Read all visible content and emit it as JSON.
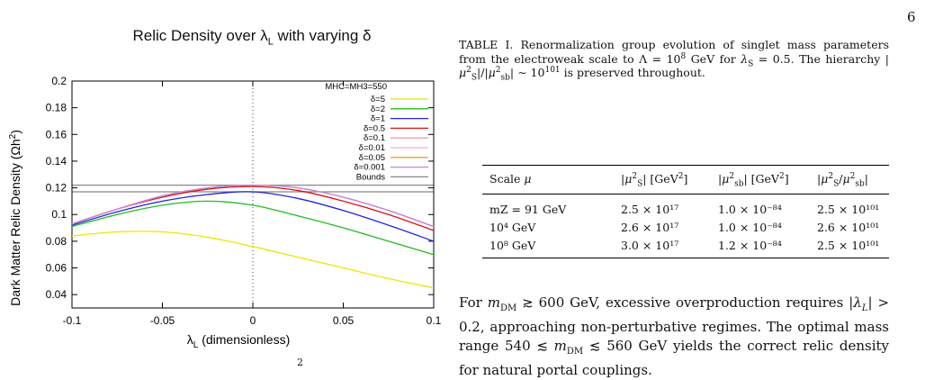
{
  "page": {
    "number": "6",
    "bottom_fragment": "2"
  },
  "figure": {
    "title": "Relic Density over λL with varying δ",
    "legend_header": "MHC=MH3=550"
  },
  "chart_data": {
    "type": "line",
    "title": "Relic Density over λL with varying δ",
    "xlabel": "λL (dimensionless)",
    "ylabel": "Dark Matter Relic Density (Ωh²)",
    "xlim": [
      -0.1,
      0.1
    ],
    "ylim": [
      0.03,
      0.2
    ],
    "x_ticks": [
      "-0.1",
      "-0.05",
      "0",
      "0.05",
      "0.1"
    ],
    "y_ticks": [
      "0.04",
      "0.06",
      "0.08",
      "0.1",
      "0.12",
      "0.14",
      "0.16",
      "0.18",
      "0.2"
    ],
    "legend_position": "top-right",
    "x": [
      -0.1,
      -0.075,
      -0.05,
      -0.025,
      0,
      0.025,
      0.05,
      0.075,
      0.1
    ],
    "series": [
      {
        "name": "δ=5",
        "color": "#e8e800",
        "values": [
          0.084,
          0.087,
          0.087,
          0.083,
          0.076,
          0.068,
          0.06,
          0.052,
          0.045
        ]
      },
      {
        "name": "δ=2",
        "color": "#22bb22",
        "values": [
          0.091,
          0.1,
          0.107,
          0.11,
          0.107,
          0.099,
          0.09,
          0.08,
          0.07
        ]
      },
      {
        "name": "δ=1",
        "color": "#2222dd",
        "values": [
          0.092,
          0.102,
          0.11,
          0.115,
          0.117,
          0.112,
          0.103,
          0.092,
          0.08
        ]
      },
      {
        "name": "δ=0.5",
        "color": "#dd1111",
        "values": [
          0.093,
          0.104,
          0.113,
          0.119,
          0.121,
          0.118,
          0.11,
          0.1,
          0.088
        ]
      },
      {
        "name": "δ=0.1",
        "color": "#e8a0b0",
        "values": [
          0.093,
          0.104,
          0.114,
          0.12,
          0.122,
          0.12,
          0.113,
          0.103,
          0.091
        ]
      },
      {
        "name": "δ=0.01",
        "color": "#f0b0c0",
        "values": [
          0.093,
          0.104,
          0.114,
          0.12,
          0.122,
          0.12,
          0.113,
          0.103,
          0.091
        ]
      },
      {
        "name": "δ=0.05",
        "color": "#f0a030",
        "values": [
          0.093,
          0.104,
          0.114,
          0.12,
          0.122,
          0.12,
          0.113,
          0.103,
          0.091
        ]
      },
      {
        "name": "δ=0.001",
        "color": "#bb88ee",
        "values": [
          0.093,
          0.104,
          0.114,
          0.12,
          0.122,
          0.12,
          0.113,
          0.103,
          0.091
        ]
      }
    ],
    "bounds": {
      "name": "Bounds",
      "color": "#888888",
      "values": [
        0.117,
        0.122
      ]
    },
    "vline_x": 0
  },
  "caption": {
    "text": "TABLE I. Renormalization group evolution of singlet mass parameters from the electroweak scale to Λ = 10⁸ GeV for λS = 0.5. The hierarchy |μ²S|/|μ²sb| ∼ 10¹⁰¹ is preserved throughout."
  },
  "table": {
    "headers": [
      "Scale μ",
      "|μ²S| [GeV²]",
      "|μ²sb| [GeV²]",
      "μ²S/μ²sb|"
    ],
    "rows": [
      [
        "mZ = 91 GeV",
        "2.5 × 10¹⁷",
        "1.0 × 10⁻⁸⁴",
        "2.5 × 10¹⁰¹"
      ],
      [
        "10⁴ GeV",
        "2.6 × 10¹⁷",
        "1.0 × 10⁻⁸⁴",
        "2.6 × 10¹⁰¹"
      ],
      [
        "10⁸ GeV",
        "3.0 × 10¹⁷",
        "1.2 × 10⁻⁸⁴",
        "2.5 × 10¹⁰¹"
      ]
    ]
  },
  "body": {
    "text": "For mDM ≳ 600 GeV, excessive overproduction requires |λL| > 0.2, approaching non-perturbative regimes. The optimal mass range 540 ≲ mDM ≲ 560 GeV yields the correct relic density for natural portal couplings."
  }
}
